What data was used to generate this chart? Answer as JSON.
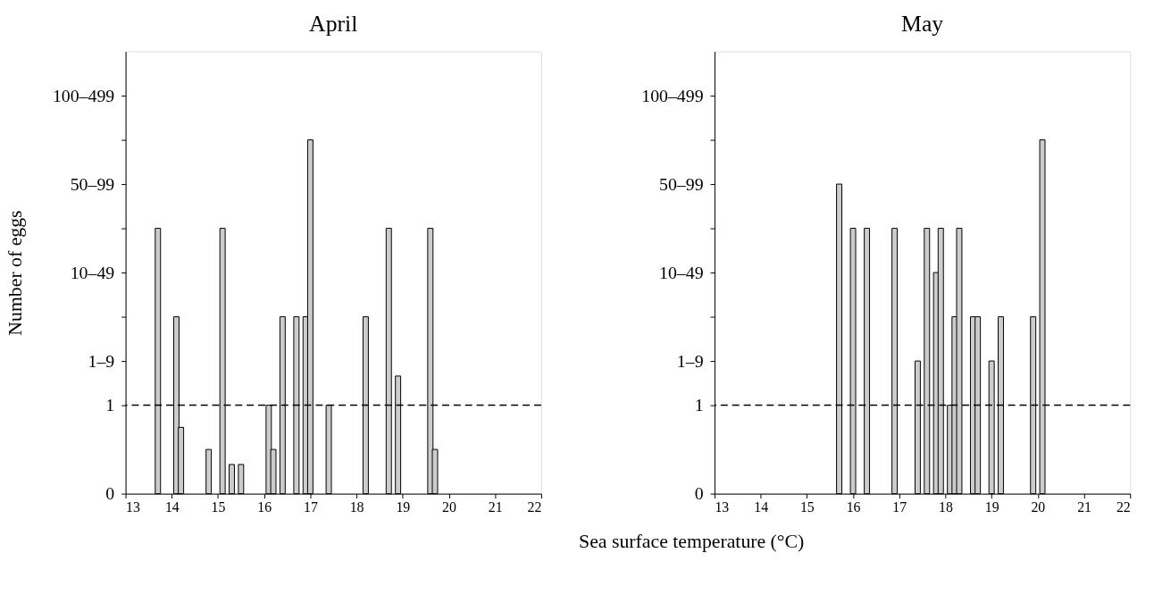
{
  "chart_data": [
    {
      "type": "bar",
      "title": "April",
      "ylabel": "Number of eggs",
      "xlabel": "Sea surface temperature (°C)",
      "x": [
        13.7,
        14.1,
        14.2,
        14.8,
        15.1,
        15.3,
        15.5,
        16.1,
        16.2,
        16.4,
        16.7,
        16.9,
        17.0,
        17.4,
        18.2,
        18.7,
        18.9,
        19.6,
        19.7
      ],
      "values": [
        3,
        2,
        0.75,
        0.5,
        3,
        0.33,
        0.33,
        1,
        0.5,
        2,
        2,
        2,
        4,
        1,
        2,
        3,
        1.33,
        3,
        0.5
      ],
      "color": "#cccccc",
      "xlim": [
        13,
        22
      ],
      "xticks": [
        13,
        14,
        15,
        16,
        17,
        18,
        19,
        20,
        21,
        22
      ],
      "ylim": [
        0,
        5
      ],
      "yticks": [
        0,
        1,
        {
          "value": 1.5,
          "label": "1–9"
        },
        {
          "value": 2,
          "label": null
        },
        {
          "value": 2.5,
          "label": "10–49"
        },
        {
          "value": 3,
          "label": null
        },
        {
          "value": 3.5,
          "label": "50–99"
        },
        {
          "value": 4,
          "label": null
        },
        {
          "value": 4.5,
          "label": "100–499"
        }
      ],
      "ref_lines": [
        {
          "axis": "y",
          "value": 1,
          "line_style": "dashed",
          "color": "#000000"
        }
      ],
      "grid": false
    },
    {
      "type": "bar",
      "title": "May",
      "x": [
        15.7,
        16.0,
        16.3,
        16.9,
        17.4,
        17.6,
        17.8,
        17.9,
        18.1,
        18.2,
        18.3,
        18.6,
        18.7,
        19.0,
        19.2,
        19.9,
        20.1
      ],
      "values": [
        3.5,
        3,
        3,
        3,
        1.5,
        3,
        2.5,
        3,
        1,
        2,
        3,
        2,
        2,
        1.5,
        2,
        2,
        4
      ],
      "color": "#cccccc",
      "xlim": [
        13,
        22
      ],
      "xticks": [
        13,
        14,
        15,
        16,
        17,
        18,
        19,
        20,
        21,
        22
      ],
      "ylim": [
        0,
        5
      ],
      "yticks": [
        0,
        1,
        {
          "value": 1.5,
          "label": "1–9"
        },
        {
          "value": 2,
          "label": null
        },
        {
          "value": 2.5,
          "label": "10–49"
        },
        {
          "value": 3,
          "label": null
        },
        {
          "value": 3.5,
          "label": "50–99"
        },
        {
          "value": 4,
          "label": null
        },
        {
          "value": 4.5,
          "label": "100–499"
        }
      ],
      "ref_lines": [
        {
          "axis": "y",
          "value": 1,
          "line_style": "dashed",
          "color": "#000000"
        }
      ],
      "grid": false
    }
  ]
}
